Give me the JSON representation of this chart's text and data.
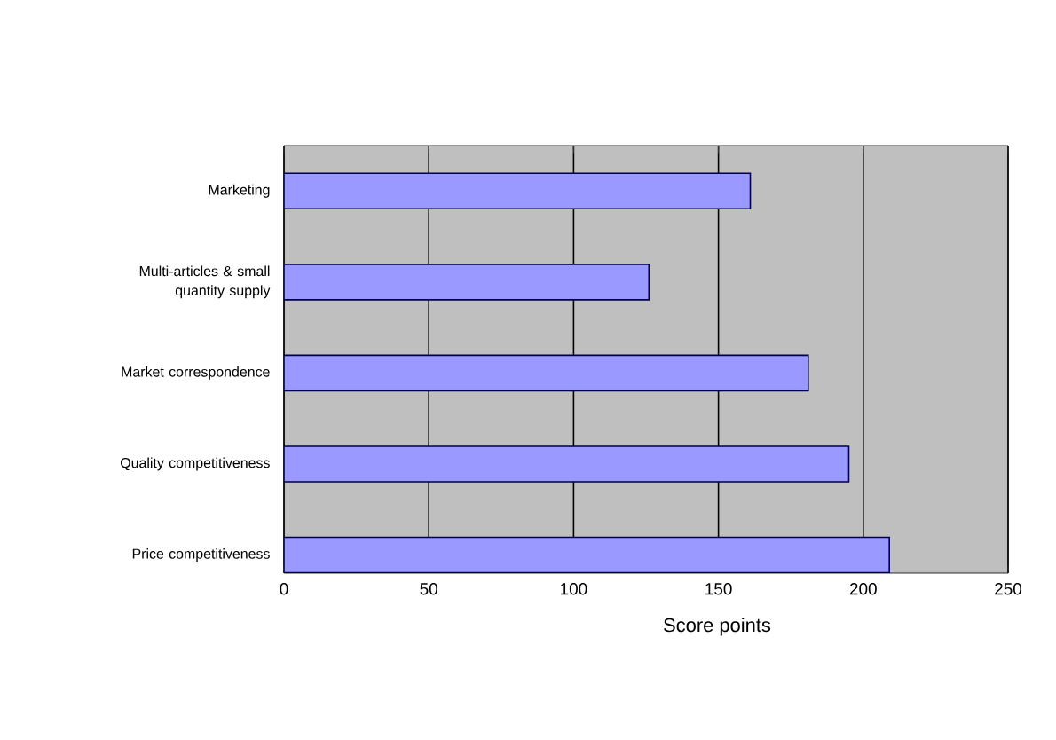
{
  "chart_data": {
    "type": "bar",
    "orientation": "horizontal",
    "categories": [
      "Marketing",
      "Multi-articles & small quantity supply",
      "Market correspondence",
      "Quality competitiveness",
      "Price competitiveness"
    ],
    "values": [
      161,
      126,
      181,
      195,
      209
    ],
    "color": "#9999ff",
    "xlim": [
      0,
      250
    ],
    "xticks": [
      0,
      50,
      100,
      150,
      200,
      250
    ],
    "grid": "x",
    "xlabel": "Score points"
  }
}
